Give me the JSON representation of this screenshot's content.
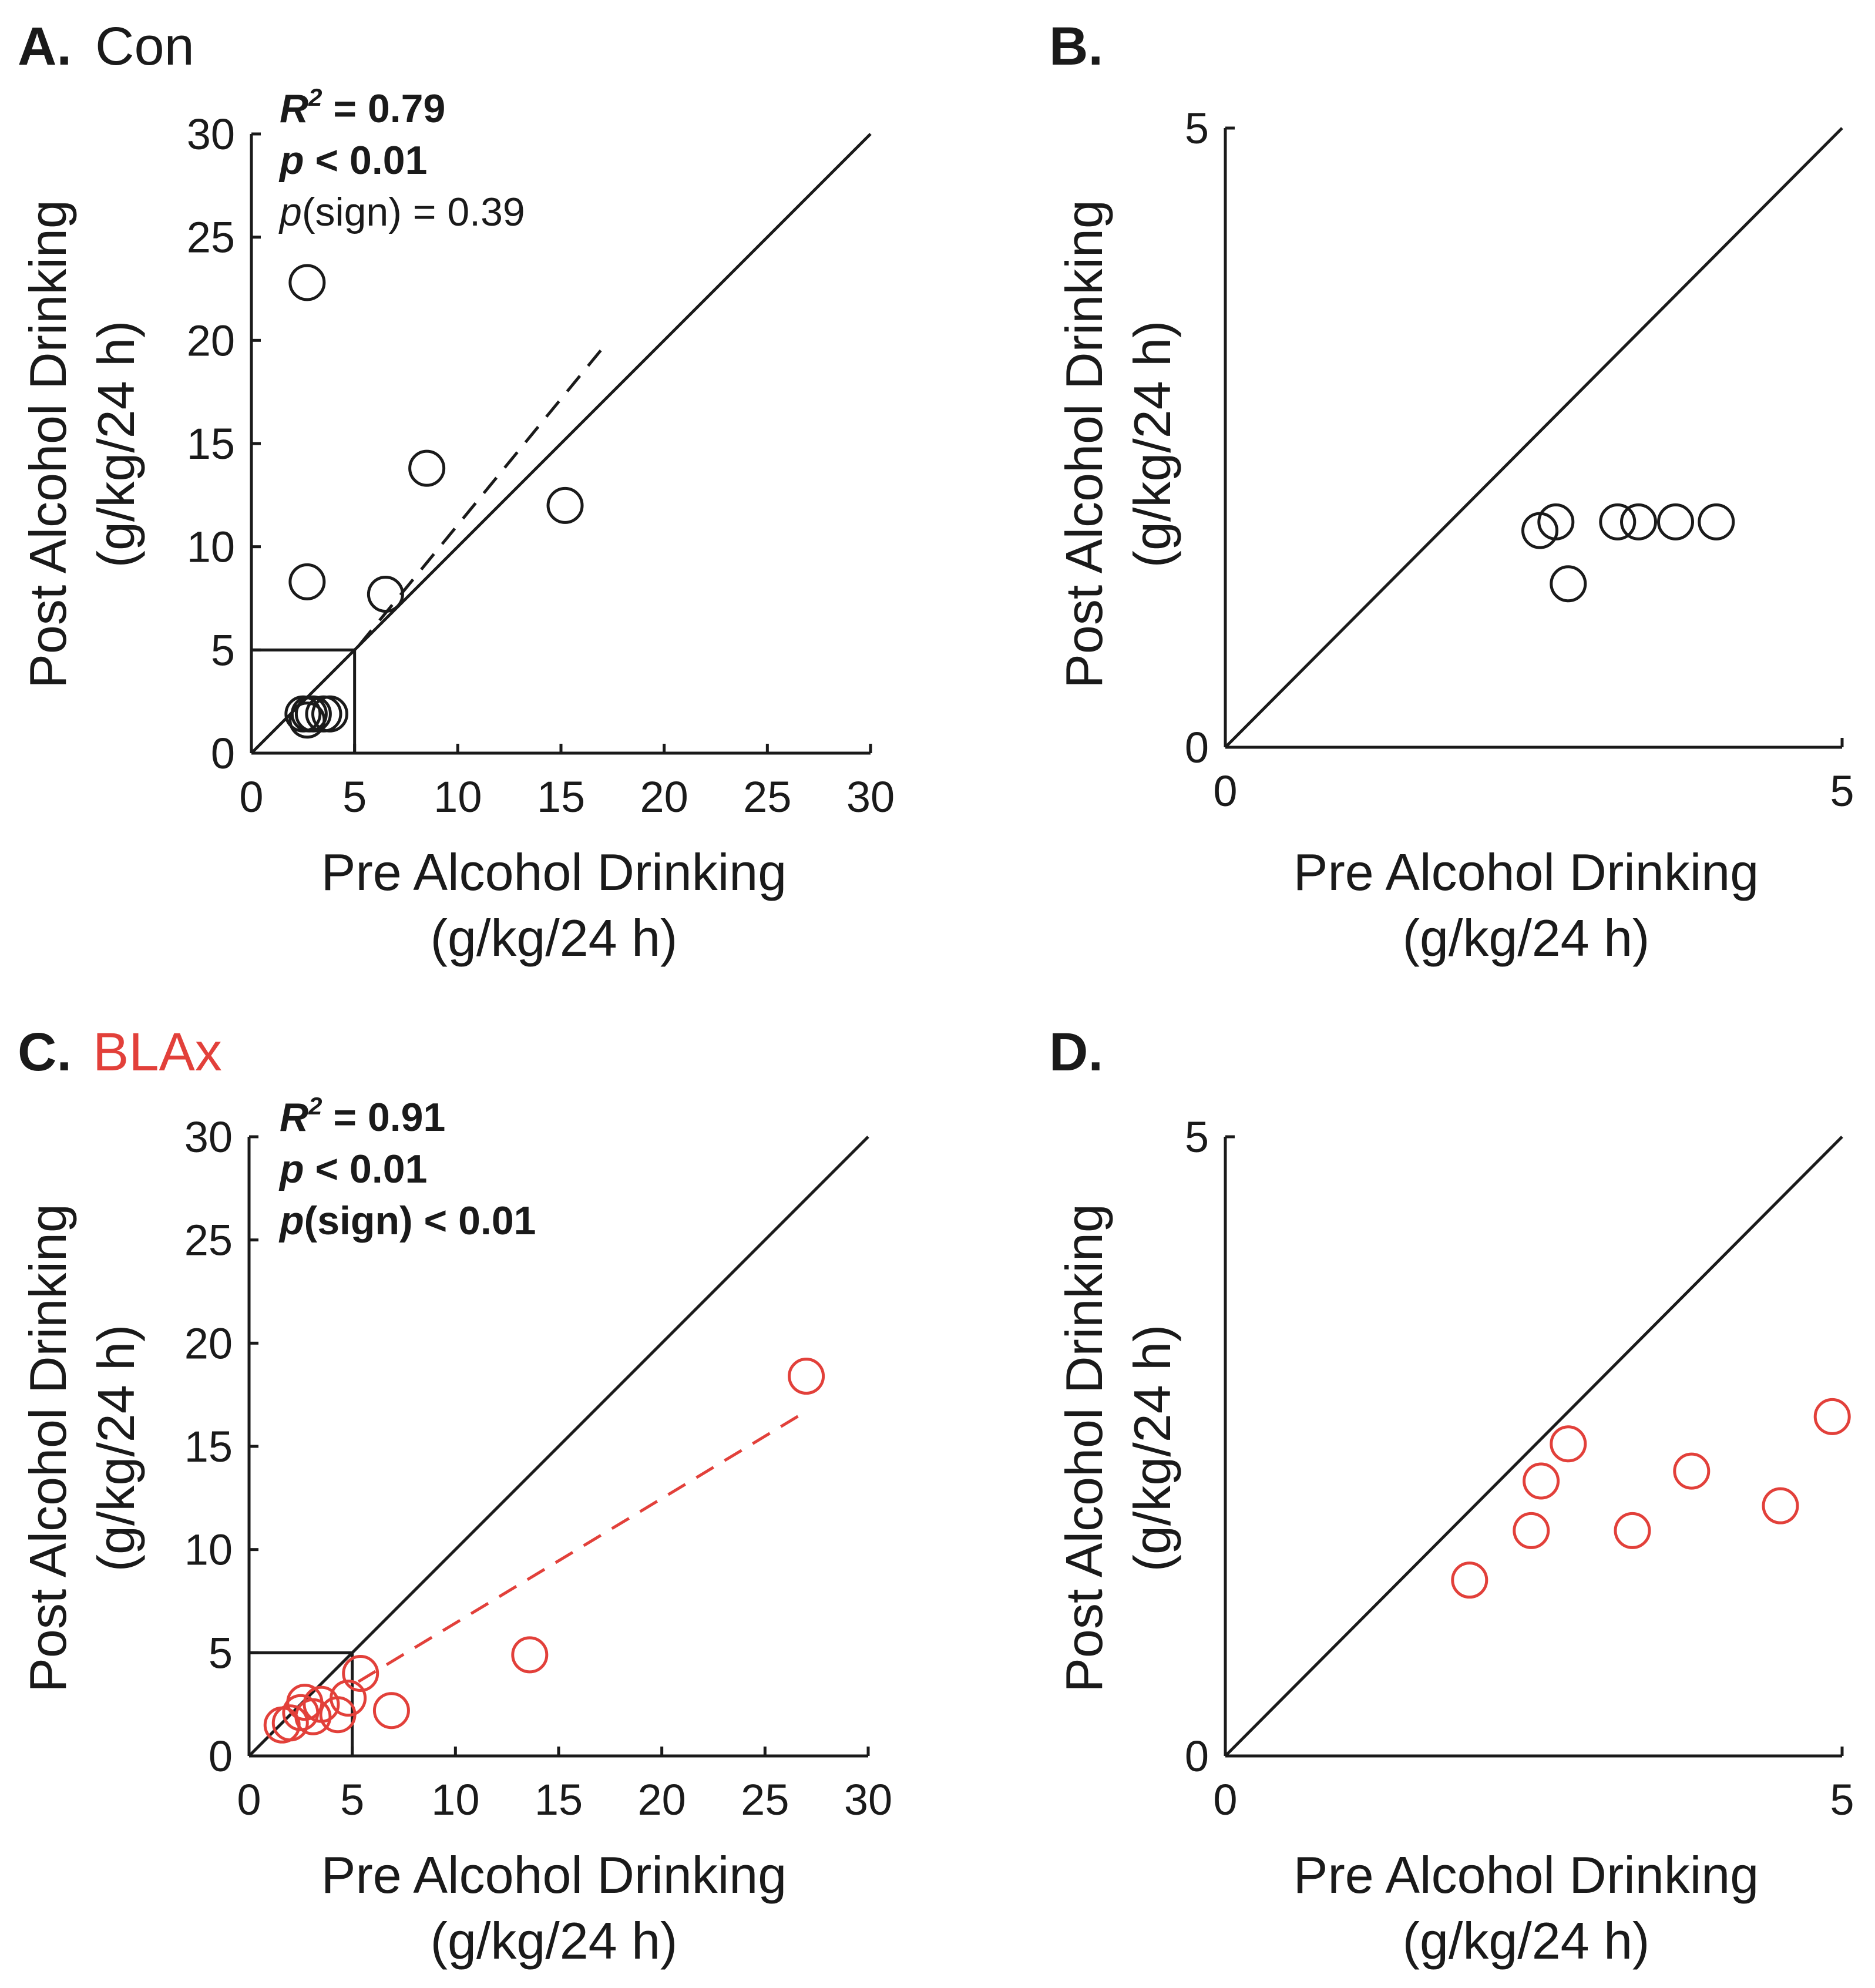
{
  "colors": {
    "control": "#1a1a1a",
    "blax": "#e2403a"
  },
  "chart_data": [
    {
      "id": "A",
      "type": "scatter",
      "panel_letter": "A.",
      "panel_name": "Con",
      "series_color": "control",
      "xlabel": [
        "Pre Alcohol Drinking",
        "(g/kg/24 h)"
      ],
      "ylabel": [
        "Post Alcohol Drinking",
        "(g/kg/24 h)"
      ],
      "xlim": [
        0,
        30
      ],
      "ylim": [
        0,
        30
      ],
      "xticks": [
        0,
        5,
        10,
        15,
        20,
        25,
        30
      ],
      "yticks": [
        0,
        5,
        10,
        15,
        20,
        25,
        30
      ],
      "identity_line": true,
      "inset_box": [
        5,
        5
      ],
      "stats": {
        "r2": {
          "label": "R",
          "sup": "2",
          "rest": " = 0.79",
          "bold": true
        },
        "p": {
          "label": "p",
          "rest": " < 0.01",
          "bold": true
        },
        "psign": {
          "label": "p",
          "rest": "(sign) = 0.39",
          "bold": false
        }
      },
      "fit_line": {
        "x": [
          5.2,
          17.0
        ],
        "y": [
          5.2,
          19.6
        ]
      },
      "points": [
        {
          "x": 2.7,
          "y": 22.8
        },
        {
          "x": 8.5,
          "y": 13.8
        },
        {
          "x": 15.2,
          "y": 12.0
        },
        {
          "x": 2.7,
          "y": 8.3
        },
        {
          "x": 6.5,
          "y": 7.7
        },
        {
          "x": 2.5,
          "y": 1.9
        },
        {
          "x": 2.8,
          "y": 1.9
        },
        {
          "x": 3.5,
          "y": 1.9
        },
        {
          "x": 3.8,
          "y": 1.9
        },
        {
          "x": 2.7,
          "y": 1.6
        },
        {
          "x": 3.0,
          "y": 1.9
        }
      ]
    },
    {
      "id": "B",
      "type": "scatter",
      "panel_letter": "B.",
      "panel_name": "",
      "series_color": "control",
      "xlabel": [
        "Pre Alcohol Drinking",
        "(g/kg/24 h)"
      ],
      "ylabel": [
        "Post Alcohol Drinking",
        "(g/kg/24 h)"
      ],
      "xlim": [
        0,
        5
      ],
      "ylim": [
        0,
        5
      ],
      "xticks": [
        0,
        5
      ],
      "yticks": [
        0,
        5
      ],
      "identity_line": true,
      "points": [
        {
          "x": 2.55,
          "y": 1.75
        },
        {
          "x": 2.68,
          "y": 1.82
        },
        {
          "x": 2.78,
          "y": 1.32
        },
        {
          "x": 3.18,
          "y": 1.82
        },
        {
          "x": 3.35,
          "y": 1.82
        },
        {
          "x": 3.65,
          "y": 1.82
        },
        {
          "x": 3.98,
          "y": 1.82
        }
      ]
    },
    {
      "id": "C",
      "type": "scatter",
      "panel_letter": "C.",
      "panel_name": "BLAx",
      "series_color": "blax",
      "xlabel": [
        "Pre Alcohol Drinking",
        "(g/kg/24 h)"
      ],
      "ylabel": [
        "Post Alcohol Drinking",
        "(g/kg/24 h)"
      ],
      "xlim": [
        0,
        30
      ],
      "ylim": [
        0,
        30
      ],
      "xticks": [
        0,
        5,
        10,
        15,
        20,
        25,
        30
      ],
      "yticks": [
        0,
        5,
        10,
        15,
        20,
        25,
        30
      ],
      "identity_line": true,
      "inset_box": [
        5,
        5
      ],
      "stats": {
        "r2": {
          "label": "R",
          "sup": "2",
          "rest": " = 0.91",
          "bold": true
        },
        "p": {
          "label": "p",
          "rest": " < 0.01",
          "bold": true
        },
        "psign": {
          "label": "p",
          "rest": "(sign) < 0.01",
          "bold": true
        }
      },
      "fit_line": {
        "x": [
          5.3,
          27.0
        ],
        "y": [
          3.6,
          16.7
        ]
      },
      "points": [
        {
          "x": 27.0,
          "y": 18.4
        },
        {
          "x": 13.6,
          "y": 4.9
        },
        {
          "x": 5.4,
          "y": 4.0
        },
        {
          "x": 6.9,
          "y": 2.2
        },
        {
          "x": 4.8,
          "y": 2.8
        },
        {
          "x": 4.3,
          "y": 2.0
        },
        {
          "x": 3.5,
          "y": 2.5
        },
        {
          "x": 2.7,
          "y": 2.6
        },
        {
          "x": 2.5,
          "y": 2.1
        },
        {
          "x": 3.1,
          "y": 1.9
        },
        {
          "x": 2.0,
          "y": 1.6
        },
        {
          "x": 1.6,
          "y": 1.5
        }
      ]
    },
    {
      "id": "D",
      "type": "scatter",
      "panel_letter": "D.",
      "panel_name": "",
      "series_color": "blax",
      "xlabel": [
        "Pre Alcohol Drinking",
        "(g/kg/24 h)"
      ],
      "ylabel": [
        "Post Alcohol Drinking",
        "(g/kg/24 h)"
      ],
      "xlim": [
        0,
        5
      ],
      "ylim": [
        0,
        5
      ],
      "xticks": [
        0,
        5
      ],
      "yticks": [
        0,
        5
      ],
      "identity_line": true,
      "points": [
        {
          "x": 1.98,
          "y": 1.42
        },
        {
          "x": 2.48,
          "y": 1.82
        },
        {
          "x": 2.56,
          "y": 2.22
        },
        {
          "x": 2.78,
          "y": 2.52
        },
        {
          "x": 3.3,
          "y": 1.82
        },
        {
          "x": 3.78,
          "y": 2.3
        },
        {
          "x": 4.5,
          "y": 2.02
        },
        {
          "x": 4.92,
          "y": 2.74
        }
      ]
    }
  ]
}
